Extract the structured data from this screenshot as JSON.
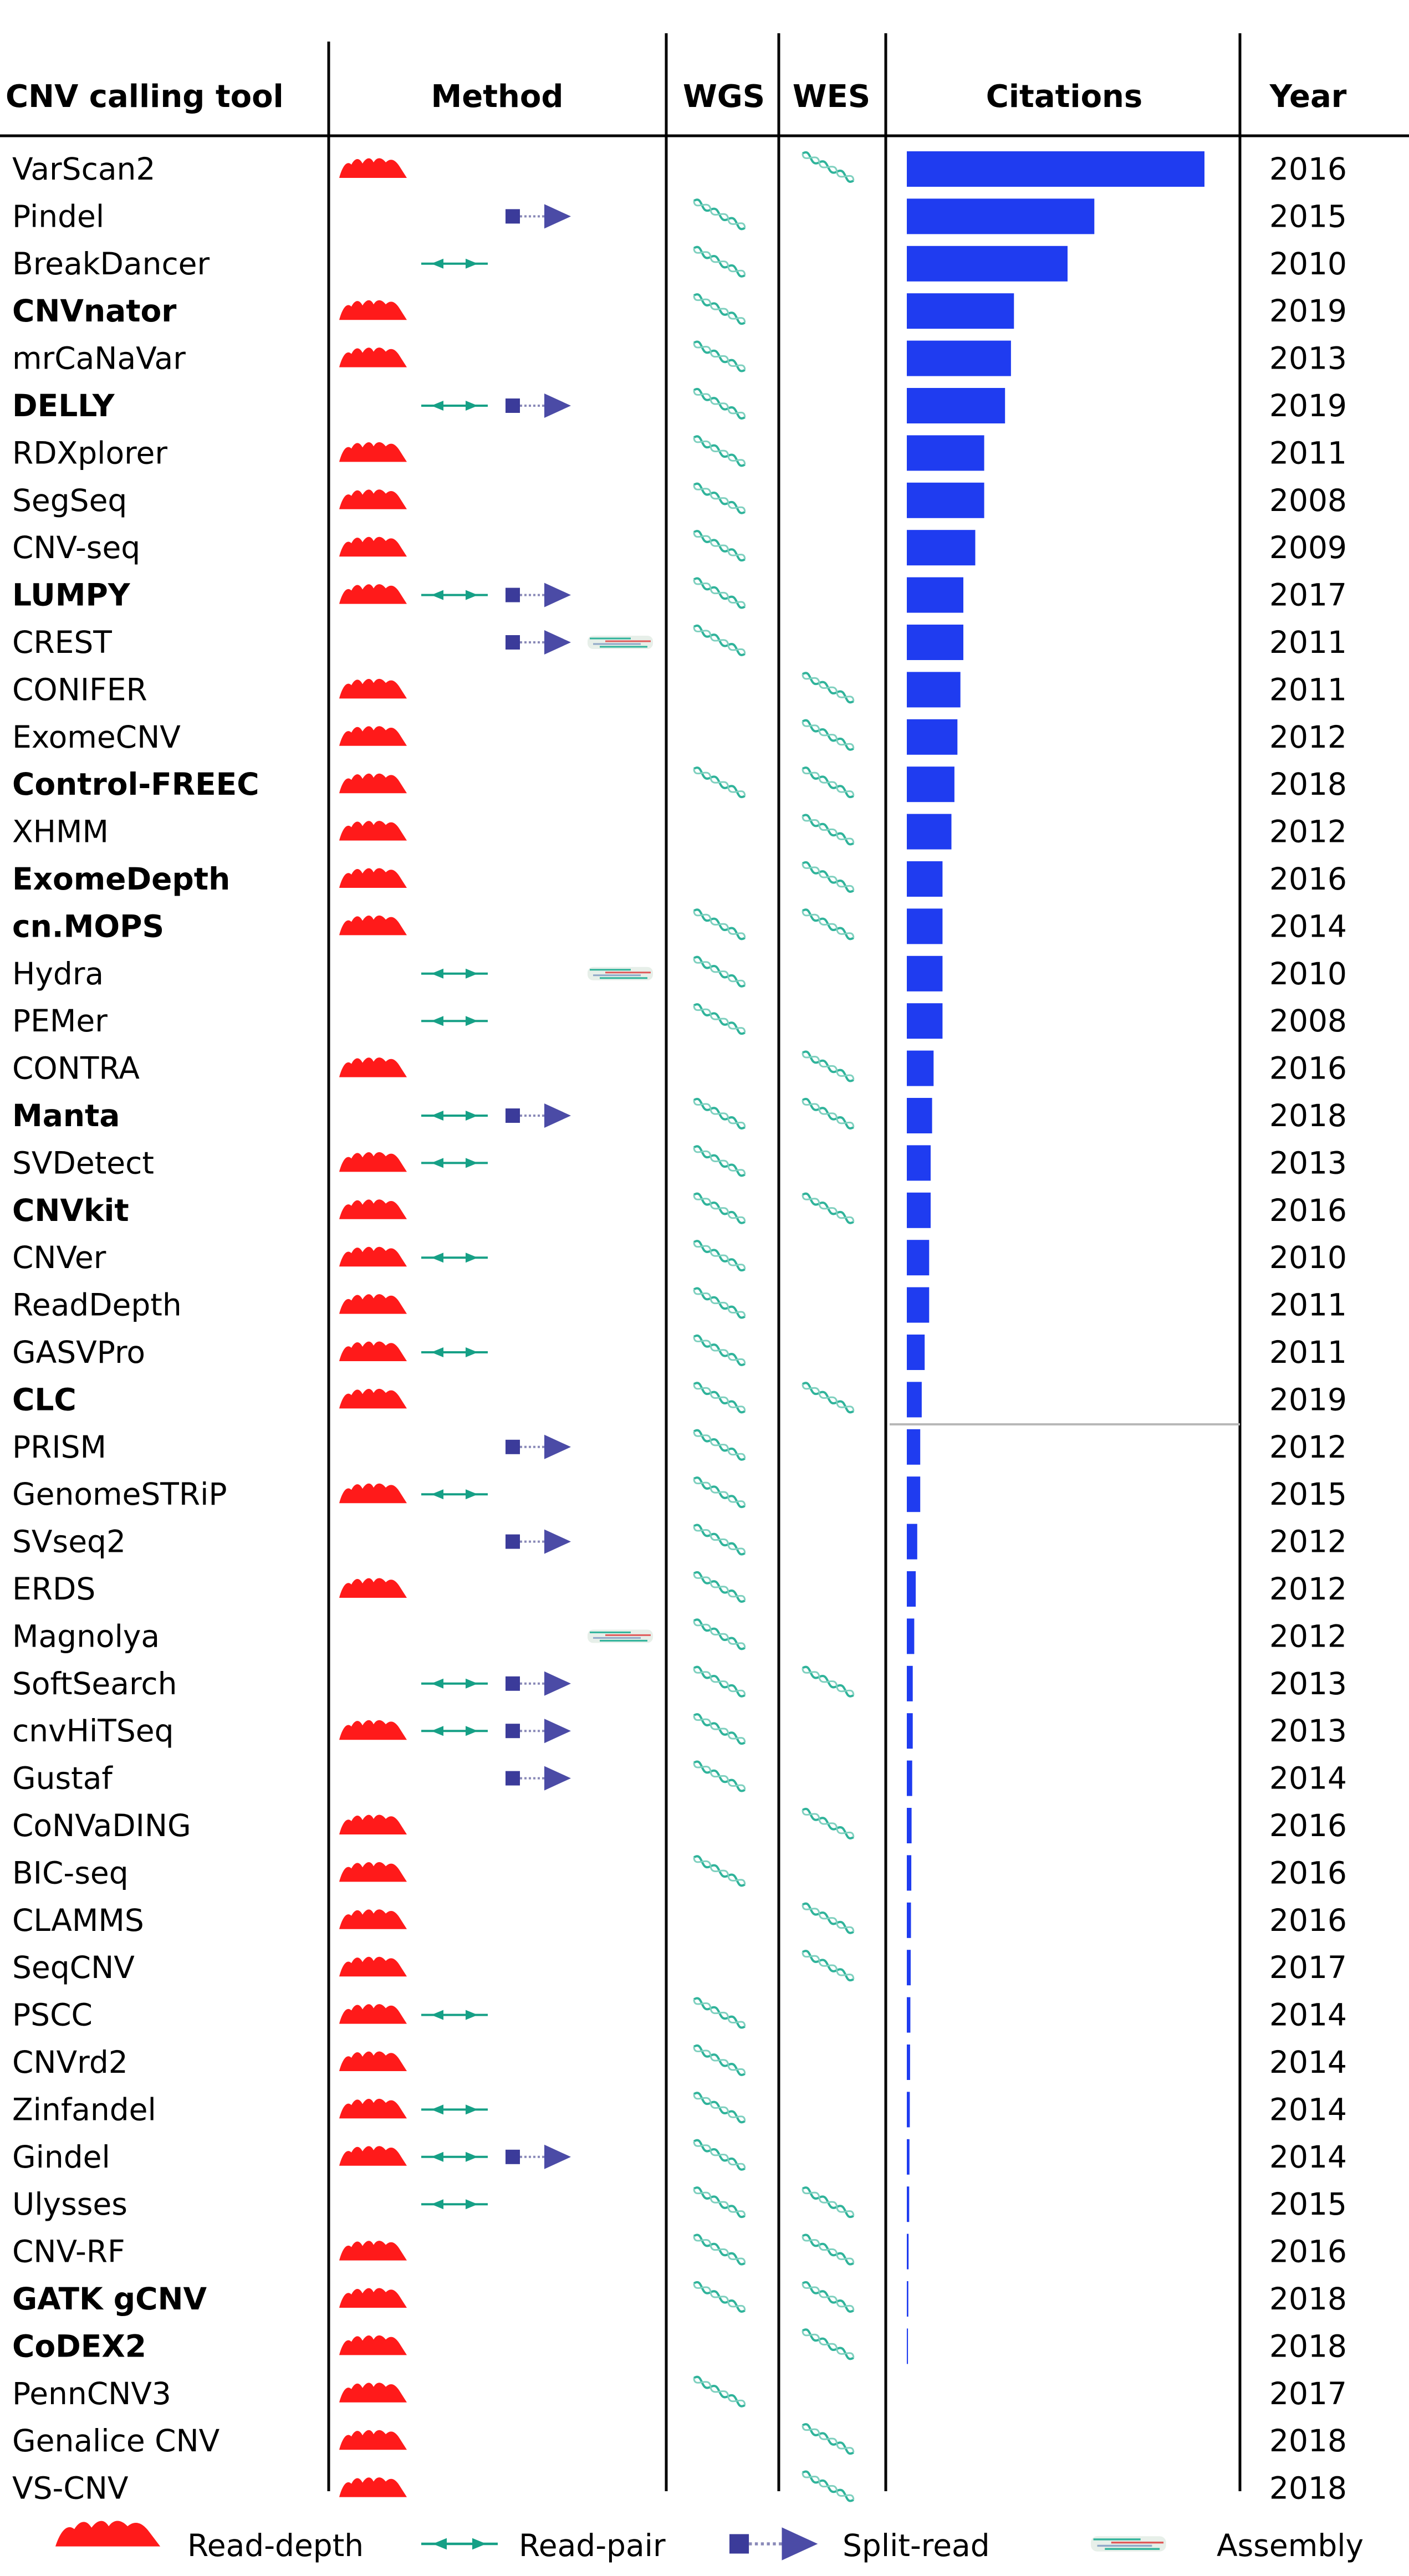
{
  "headers": {
    "tool": "CNV calling tool",
    "method": "Method",
    "wgs": "WGS",
    "wes": "WES",
    "citations": "Citations",
    "year": "Year"
  },
  "legend": {
    "read_depth": "Read-depth",
    "read_pair": "Read-pair",
    "split_read": "Split-read",
    "assembly": "Assembly"
  },
  "colors": {
    "read_depth": "#ff1a1a",
    "read_pair": "#16a086",
    "split_read": "#3b3b9a",
    "citation_bar": "#1f3cf0",
    "dna": "#2fb39a"
  },
  "chart_data": {
    "type": "table",
    "columns": [
      "CNV calling tool",
      "Method",
      "WGS",
      "WES",
      "Citations",
      "Year"
    ],
    "citation_axis": [
      0,
      100
    ],
    "tools": [
      {
        "name": "VarScan2",
        "bold": false,
        "rd": true,
        "rp": false,
        "sr": false,
        "asm": false,
        "wgs": false,
        "wes": true,
        "citations": 100,
        "year": "2016"
      },
      {
        "name": "Pindel",
        "bold": false,
        "rd": false,
        "rp": false,
        "sr": true,
        "asm": false,
        "wgs": true,
        "wes": false,
        "citations": 63,
        "year": "2015"
      },
      {
        "name": "BreakDancer",
        "bold": false,
        "rd": false,
        "rp": true,
        "sr": false,
        "asm": false,
        "wgs": true,
        "wes": false,
        "citations": 54,
        "year": "2010"
      },
      {
        "name": "CNVnator",
        "bold": true,
        "rd": true,
        "rp": false,
        "sr": false,
        "asm": false,
        "wgs": true,
        "wes": false,
        "citations": 36,
        "year": "2019"
      },
      {
        "name": "mrCaNaVar",
        "bold": false,
        "rd": true,
        "rp": false,
        "sr": false,
        "asm": false,
        "wgs": true,
        "wes": false,
        "citations": 35,
        "year": "2013"
      },
      {
        "name": "DELLY",
        "bold": true,
        "rd": false,
        "rp": true,
        "sr": true,
        "asm": false,
        "wgs": true,
        "wes": false,
        "citations": 33,
        "year": "2019"
      },
      {
        "name": "RDXplorer",
        "bold": false,
        "rd": true,
        "rp": false,
        "sr": false,
        "asm": false,
        "wgs": true,
        "wes": false,
        "citations": 26,
        "year": "2011"
      },
      {
        "name": "SegSeq",
        "bold": false,
        "rd": true,
        "rp": false,
        "sr": false,
        "asm": false,
        "wgs": true,
        "wes": false,
        "citations": 26,
        "year": "2008"
      },
      {
        "name": "CNV-seq",
        "bold": false,
        "rd": true,
        "rp": false,
        "sr": false,
        "asm": false,
        "wgs": true,
        "wes": false,
        "citations": 23,
        "year": "2009"
      },
      {
        "name": "LUMPY",
        "bold": true,
        "rd": true,
        "rp": true,
        "sr": true,
        "asm": false,
        "wgs": true,
        "wes": false,
        "citations": 19,
        "year": "2017"
      },
      {
        "name": "CREST",
        "bold": false,
        "rd": false,
        "rp": false,
        "sr": true,
        "asm": true,
        "wgs": true,
        "wes": false,
        "citations": 19,
        "year": "2011"
      },
      {
        "name": "CONIFER",
        "bold": false,
        "rd": true,
        "rp": false,
        "sr": false,
        "asm": false,
        "wgs": false,
        "wes": true,
        "citations": 18,
        "year": "2011"
      },
      {
        "name": "ExomeCNV",
        "bold": false,
        "rd": true,
        "rp": false,
        "sr": false,
        "asm": false,
        "wgs": false,
        "wes": true,
        "citations": 17,
        "year": "2012"
      },
      {
        "name": "Control-FREEC",
        "bold": true,
        "rd": true,
        "rp": false,
        "sr": false,
        "asm": false,
        "wgs": true,
        "wes": true,
        "citations": 16,
        "year": "2018"
      },
      {
        "name": "XHMM",
        "bold": false,
        "rd": true,
        "rp": false,
        "sr": false,
        "asm": false,
        "wgs": false,
        "wes": true,
        "citations": 15,
        "year": "2012"
      },
      {
        "name": "ExomeDepth",
        "bold": true,
        "rd": true,
        "rp": false,
        "sr": false,
        "asm": false,
        "wgs": false,
        "wes": true,
        "citations": 12,
        "year": "2016"
      },
      {
        "name": "cn.MOPS",
        "bold": true,
        "rd": true,
        "rp": false,
        "sr": false,
        "asm": false,
        "wgs": true,
        "wes": true,
        "citations": 12,
        "year": "2014"
      },
      {
        "name": "Hydra",
        "bold": false,
        "rd": false,
        "rp": true,
        "sr": false,
        "asm": true,
        "wgs": true,
        "wes": false,
        "citations": 12,
        "year": "2010"
      },
      {
        "name": "PEMer",
        "bold": false,
        "rd": false,
        "rp": true,
        "sr": false,
        "asm": false,
        "wgs": true,
        "wes": false,
        "citations": 12,
        "year": "2008"
      },
      {
        "name": "CONTRA",
        "bold": false,
        "rd": true,
        "rp": false,
        "sr": false,
        "asm": false,
        "wgs": false,
        "wes": true,
        "citations": 9,
        "year": "2016"
      },
      {
        "name": "Manta",
        "bold": true,
        "rd": false,
        "rp": true,
        "sr": true,
        "asm": false,
        "wgs": true,
        "wes": true,
        "citations": 8.5,
        "year": "2018"
      },
      {
        "name": "SVDetect",
        "bold": false,
        "rd": true,
        "rp": true,
        "sr": false,
        "asm": false,
        "wgs": true,
        "wes": false,
        "citations": 8,
        "year": "2013"
      },
      {
        "name": "CNVkit",
        "bold": true,
        "rd": true,
        "rp": false,
        "sr": false,
        "asm": false,
        "wgs": true,
        "wes": true,
        "citations": 8,
        "year": "2016"
      },
      {
        "name": "CNVer",
        "bold": false,
        "rd": true,
        "rp": true,
        "sr": false,
        "asm": false,
        "wgs": true,
        "wes": false,
        "citations": 7.5,
        "year": "2010"
      },
      {
        "name": "ReadDepth",
        "bold": false,
        "rd": true,
        "rp": false,
        "sr": false,
        "asm": false,
        "wgs": true,
        "wes": false,
        "citations": 7.5,
        "year": "2011"
      },
      {
        "name": "GASVPro",
        "bold": false,
        "rd": true,
        "rp": true,
        "sr": false,
        "asm": false,
        "wgs": true,
        "wes": false,
        "citations": 6,
        "year": "2011"
      },
      {
        "name": "CLC",
        "bold": true,
        "rd": true,
        "rp": false,
        "sr": false,
        "asm": false,
        "wgs": true,
        "wes": true,
        "citations": 5,
        "year": "2019"
      },
      {
        "name": "PRISM",
        "bold": false,
        "rd": false,
        "rp": false,
        "sr": true,
        "asm": false,
        "wgs": true,
        "wes": false,
        "citations": 4.5,
        "year": "2012"
      },
      {
        "name": "GenomeSTRiP",
        "bold": false,
        "rd": true,
        "rp": true,
        "sr": false,
        "asm": false,
        "wgs": true,
        "wes": false,
        "citations": 4.5,
        "year": "2015"
      },
      {
        "name": "SVseq2",
        "bold": false,
        "rd": false,
        "rp": false,
        "sr": true,
        "asm": false,
        "wgs": true,
        "wes": false,
        "citations": 3.5,
        "year": "2012"
      },
      {
        "name": "ERDS",
        "bold": false,
        "rd": true,
        "rp": false,
        "sr": false,
        "asm": false,
        "wgs": true,
        "wes": false,
        "citations": 3,
        "year": "2012"
      },
      {
        "name": "Magnolya",
        "bold": false,
        "rd": false,
        "rp": false,
        "sr": false,
        "asm": true,
        "wgs": true,
        "wes": false,
        "citations": 2.5,
        "year": "2012"
      },
      {
        "name": "SoftSearch",
        "bold": false,
        "rd": false,
        "rp": true,
        "sr": true,
        "asm": false,
        "wgs": true,
        "wes": true,
        "citations": 2,
        "year": "2013"
      },
      {
        "name": "cnvHiTSeq",
        "bold": false,
        "rd": true,
        "rp": true,
        "sr": true,
        "asm": false,
        "wgs": true,
        "wes": false,
        "citations": 2,
        "year": "2013"
      },
      {
        "name": "Gustaf",
        "bold": false,
        "rd": false,
        "rp": false,
        "sr": true,
        "asm": false,
        "wgs": true,
        "wes": false,
        "citations": 1.8,
        "year": "2014"
      },
      {
        "name": "CoNVaDING",
        "bold": false,
        "rd": true,
        "rp": false,
        "sr": false,
        "asm": false,
        "wgs": false,
        "wes": true,
        "citations": 1.6,
        "year": "2016"
      },
      {
        "name": "BIC-seq",
        "bold": false,
        "rd": true,
        "rp": false,
        "sr": false,
        "asm": false,
        "wgs": true,
        "wes": false,
        "citations": 1.5,
        "year": "2016"
      },
      {
        "name": "CLAMMS",
        "bold": false,
        "rd": true,
        "rp": false,
        "sr": false,
        "asm": false,
        "wgs": false,
        "wes": true,
        "citations": 1.4,
        "year": "2016"
      },
      {
        "name": "SeqCNV",
        "bold": false,
        "rd": true,
        "rp": false,
        "sr": false,
        "asm": false,
        "wgs": false,
        "wes": true,
        "citations": 1.3,
        "year": "2017"
      },
      {
        "name": "PSCC",
        "bold": false,
        "rd": true,
        "rp": true,
        "sr": false,
        "asm": false,
        "wgs": true,
        "wes": false,
        "citations": 1.2,
        "year": "2014"
      },
      {
        "name": "CNVrd2",
        "bold": false,
        "rd": true,
        "rp": false,
        "sr": false,
        "asm": false,
        "wgs": true,
        "wes": false,
        "citations": 1.1,
        "year": "2014"
      },
      {
        "name": "Zinfandel",
        "bold": false,
        "rd": true,
        "rp": true,
        "sr": false,
        "asm": false,
        "wgs": true,
        "wes": false,
        "citations": 1,
        "year": "2014"
      },
      {
        "name": "Gindel",
        "bold": false,
        "rd": true,
        "rp": true,
        "sr": true,
        "asm": false,
        "wgs": true,
        "wes": false,
        "citations": 0.9,
        "year": "2014"
      },
      {
        "name": "Ulysses",
        "bold": false,
        "rd": false,
        "rp": true,
        "sr": false,
        "asm": false,
        "wgs": true,
        "wes": true,
        "citations": 0.8,
        "year": "2015"
      },
      {
        "name": "CNV-RF",
        "bold": false,
        "rd": true,
        "rp": false,
        "sr": false,
        "asm": false,
        "wgs": true,
        "wes": true,
        "citations": 0.6,
        "year": "2016"
      },
      {
        "name": "GATK gCNV",
        "bold": true,
        "rd": true,
        "rp": false,
        "sr": false,
        "asm": false,
        "wgs": true,
        "wes": true,
        "citations": 0.5,
        "year": "2018"
      },
      {
        "name": "CoDEX2",
        "bold": true,
        "rd": true,
        "rp": false,
        "sr": false,
        "asm": false,
        "wgs": false,
        "wes": true,
        "citations": 0.4,
        "year": "2018"
      },
      {
        "name": "PennCNV3",
        "bold": false,
        "rd": true,
        "rp": false,
        "sr": false,
        "asm": false,
        "wgs": true,
        "wes": false,
        "citations": 0,
        "year": "2017"
      },
      {
        "name": "Genalice CNV",
        "bold": false,
        "rd": true,
        "rp": false,
        "sr": false,
        "asm": false,
        "wgs": false,
        "wes": true,
        "citations": 0,
        "year": "2018"
      },
      {
        "name": "VS-CNV",
        "bold": false,
        "rd": true,
        "rp": false,
        "sr": false,
        "asm": false,
        "wgs": false,
        "wes": true,
        "citations": 0,
        "year": "2018"
      }
    ]
  }
}
